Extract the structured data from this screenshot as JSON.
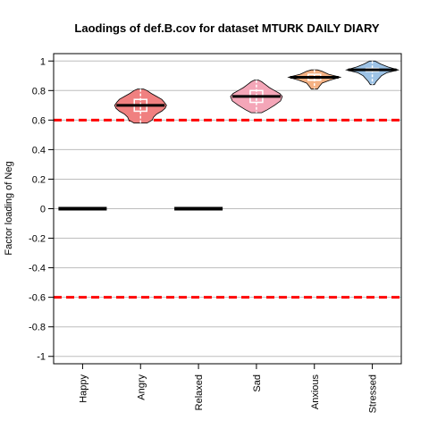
{
  "chart_data": {
    "type": "violin",
    "title": "Laodings of def.B.cov for dataset MTURK DAILY DIARY",
    "xlabel": "",
    "ylabel": "Factor loading of Neg",
    "ylim": [
      -1.05,
      1.05
    ],
    "yticks": [
      1,
      0.8,
      0.6,
      0.4,
      0.2,
      0,
      -0.2,
      -0.4,
      -0.6,
      -0.8,
      -1
    ],
    "ytick_labels": [
      "1",
      "0.8",
      "0.6",
      "0.4",
      "0.2",
      "0",
      "-0.2",
      "-0.4",
      "-0.6",
      "-0.8",
      "-1"
    ],
    "grid": true,
    "reference_lines": [
      {
        "value": 0.6,
        "color": "#ff0000",
        "style": "dashed"
      },
      {
        "value": -0.6,
        "color": "#ff0000",
        "style": "dashed"
      }
    ],
    "categories": [
      "Happy",
      "Angry",
      "Relaxed",
      "Sad",
      "Anxious",
      "Stressed"
    ],
    "series": [
      {
        "category": "Happy",
        "median": 0,
        "min": 0,
        "max": 0,
        "fixed": true,
        "color": ""
      },
      {
        "category": "Angry",
        "median": 0.7,
        "q1": 0.66,
        "q3": 0.74,
        "min": 0.58,
        "max": 0.81,
        "color": "#f08080",
        "density": [
          [
            0.58,
            0.25
          ],
          [
            0.6,
            0.45
          ],
          [
            0.62,
            0.5
          ],
          [
            0.64,
            0.62
          ],
          [
            0.66,
            0.82
          ],
          [
            0.68,
            0.95
          ],
          [
            0.7,
            1.0
          ],
          [
            0.72,
            0.92
          ],
          [
            0.74,
            0.82
          ],
          [
            0.76,
            0.62
          ],
          [
            0.78,
            0.42
          ],
          [
            0.8,
            0.25
          ],
          [
            0.81,
            0.12
          ]
        ]
      },
      {
        "category": "Relaxed",
        "median": 0,
        "min": 0,
        "max": 0,
        "fixed": true,
        "color": ""
      },
      {
        "category": "Sad",
        "median": 0.76,
        "q1": 0.72,
        "q3": 0.8,
        "min": 0.65,
        "max": 0.87,
        "color": "#f4a6b8",
        "density": [
          [
            0.65,
            0.2
          ],
          [
            0.67,
            0.42
          ],
          [
            0.7,
            0.7
          ],
          [
            0.73,
            0.93
          ],
          [
            0.76,
            1.0
          ],
          [
            0.78,
            0.9
          ],
          [
            0.8,
            0.7
          ],
          [
            0.82,
            0.5
          ],
          [
            0.84,
            0.35
          ],
          [
            0.86,
            0.2
          ],
          [
            0.87,
            0.08
          ]
        ]
      },
      {
        "category": "Anxious",
        "median": 0.89,
        "q1": 0.87,
        "q3": 0.91,
        "min": 0.81,
        "max": 0.94,
        "color": "#f4b183",
        "density": [
          [
            0.81,
            0.12
          ],
          [
            0.83,
            0.2
          ],
          [
            0.85,
            0.3
          ],
          [
            0.87,
            0.6
          ],
          [
            0.89,
            1.0
          ],
          [
            0.91,
            0.55
          ],
          [
            0.93,
            0.3
          ],
          [
            0.94,
            0.12
          ]
        ]
      },
      {
        "category": "Stressed",
        "median": 0.94,
        "q1": 0.93,
        "q3": 0.95,
        "min": 0.84,
        "max": 1.0,
        "color": "#9dc3e6",
        "density": [
          [
            0.84,
            0.08
          ],
          [
            0.86,
            0.15
          ],
          [
            0.88,
            0.25
          ],
          [
            0.9,
            0.35
          ],
          [
            0.92,
            0.55
          ],
          [
            0.94,
            1.0
          ],
          [
            0.96,
            0.6
          ],
          [
            0.98,
            0.32
          ],
          [
            1.0,
            0.1
          ]
        ]
      }
    ]
  }
}
